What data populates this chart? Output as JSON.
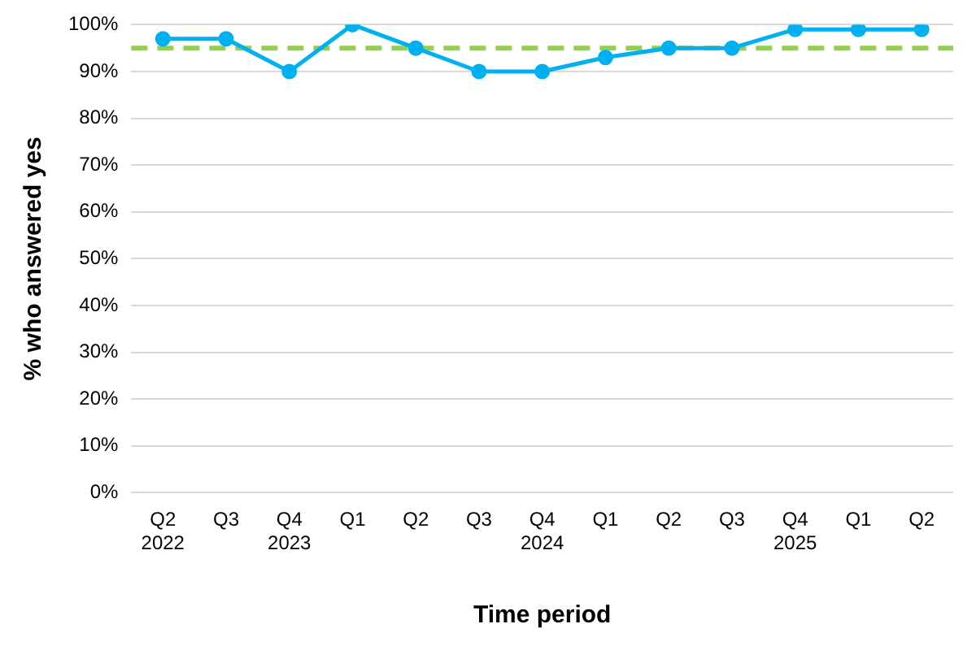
{
  "chart_data": {
    "type": "line",
    "xlabel": "Time period",
    "ylabel": "% who answered yes",
    "categories": [
      "Q2\n2022",
      "Q3",
      "Q4\n2023",
      "Q1",
      "Q2",
      "Q3",
      "Q4\n2024",
      "Q1",
      "Q2",
      "Q3",
      "Q4\n2025",
      "Q1",
      "Q2"
    ],
    "series": [
      {
        "color": "#00b0f0",
        "values": [
          97,
          97,
          90,
          100,
          95,
          90,
          90,
          93,
          95,
          95,
          99,
          99,
          99
        ]
      }
    ],
    "ylim": [
      0,
      100
    ],
    "yticks": [
      {
        "value": 0,
        "label": "0%"
      },
      {
        "value": 10,
        "label": "10%"
      },
      {
        "value": 20,
        "label": "20%"
      },
      {
        "value": 30,
        "label": "30%"
      },
      {
        "value": 40,
        "label": "40%"
      },
      {
        "value": 50,
        "label": "50%"
      },
      {
        "value": 60,
        "label": "60%"
      },
      {
        "value": 70,
        "label": "70%"
      },
      {
        "value": 80,
        "label": "80%"
      },
      {
        "value": 90,
        "label": "90%"
      },
      {
        "value": 100,
        "label": "100%"
      }
    ],
    "ref_lines": [
      {
        "axis": "y",
        "value": 95,
        "color": "#92d050",
        "line_style": "dashed"
      }
    ],
    "grid": "y",
    "legend": false,
    "marker": "circle",
    "line_style": "solid"
  }
}
